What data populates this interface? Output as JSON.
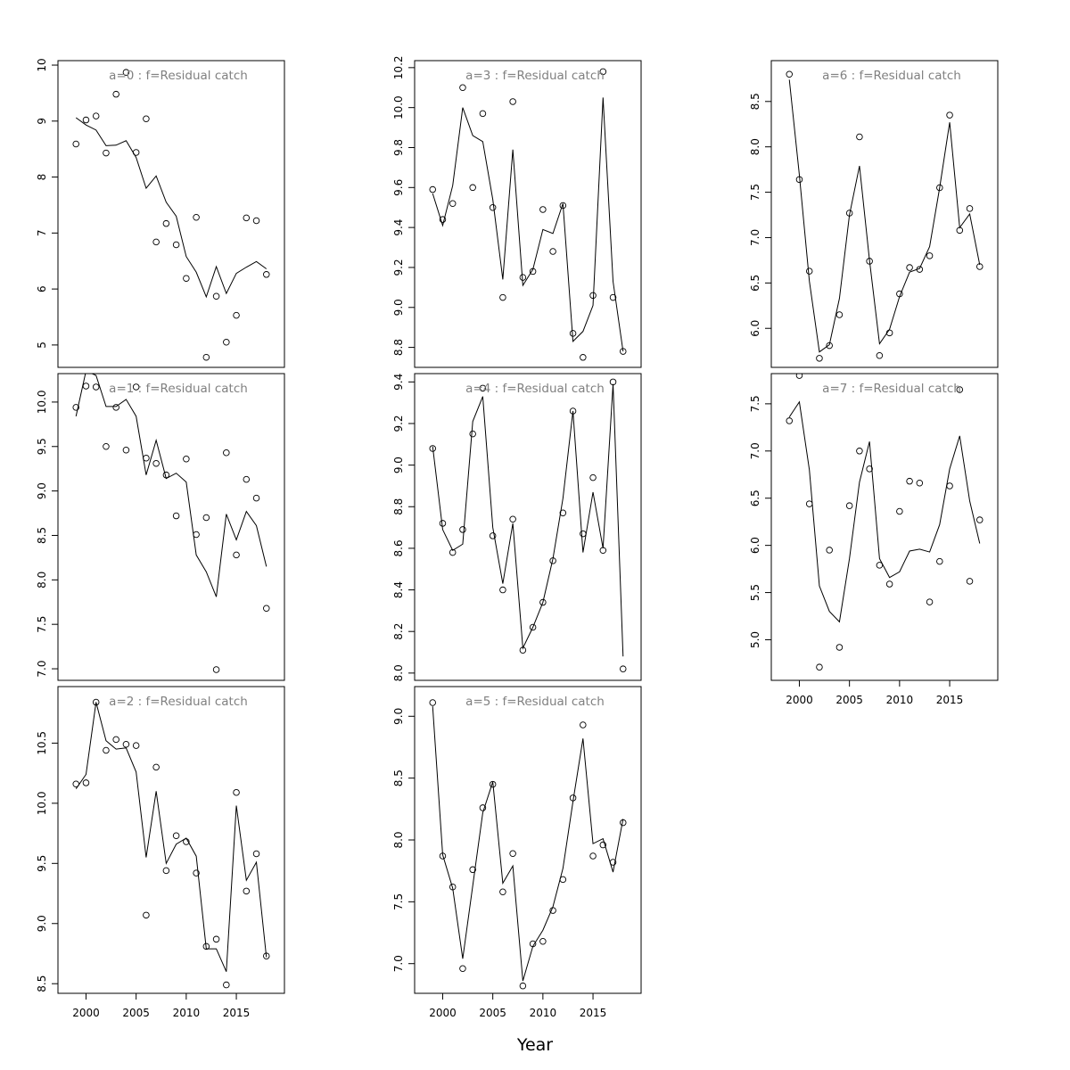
{
  "xlabel": "Year",
  "chart_data": [
    {
      "type": "scatter",
      "title": "a=0  :  f=Residual catch",
      "xlabel": "",
      "ylabel": "",
      "x": [
        1999,
        2000,
        2001,
        2002,
        2003,
        2004,
        2005,
        2006,
        2007,
        2008,
        2009,
        2010,
        2011,
        2012,
        2013,
        2014,
        2015,
        2016,
        2017,
        2018
      ],
      "xlim": [
        1997.2,
        2019.8
      ],
      "xticks": [
        2000,
        2005,
        2010,
        2015
      ],
      "ylim": [
        4.6,
        10.08
      ],
      "yticks": [
        5,
        6,
        7,
        8,
        9,
        10
      ],
      "series": [
        {
          "kind": "points",
          "values": [
            8.59,
            9.02,
            9.09,
            8.43,
            9.48,
            9.87,
            8.44,
            9.04,
            6.84,
            7.17,
            6.79,
            6.19,
            7.28,
            4.78,
            5.87,
            5.05,
            5.53,
            7.27,
            7.22,
            6.26
          ]
        },
        {
          "kind": "line",
          "values": [
            9.06,
            8.93,
            8.84,
            8.56,
            8.57,
            8.65,
            8.35,
            7.8,
            8.02,
            7.55,
            7.3,
            6.58,
            6.3,
            5.86,
            6.4,
            5.92,
            6.28,
            6.39,
            6.49,
            6.36
          ]
        }
      ]
    },
    {
      "type": "scatter",
      "title": "a=1  :  f=Residual catch",
      "xlabel": "",
      "ylabel": "",
      "x": [
        1999,
        2000,
        2001,
        2002,
        2003,
        2004,
        2005,
        2006,
        2007,
        2008,
        2009,
        2010,
        2011,
        2012,
        2013,
        2014,
        2015,
        2016,
        2017,
        2018
      ],
      "xlim": [
        1997.2,
        2019.8
      ],
      "xticks": [
        2000,
        2005,
        2010,
        2015
      ],
      "ylim": [
        6.87,
        10.32
      ],
      "yticks": [
        7.0,
        7.5,
        8.0,
        8.5,
        9.0,
        9.5,
        10.0
      ],
      "series": [
        {
          "kind": "points",
          "values": [
            9.94,
            10.18,
            10.17,
            9.5,
            9.94,
            9.46,
            10.17,
            9.37,
            9.31,
            9.18,
            8.72,
            9.36,
            8.51,
            8.7,
            6.99,
            9.43,
            8.28,
            9.13,
            8.92,
            7.68
          ]
        },
        {
          "kind": "line",
          "values": [
            9.84,
            10.35,
            10.3,
            9.95,
            9.95,
            10.03,
            9.84,
            9.18,
            9.57,
            9.14,
            9.2,
            9.1,
            8.28,
            8.09,
            7.81,
            8.74,
            8.45,
            8.77,
            8.61,
            8.15
          ]
        }
      ]
    },
    {
      "type": "scatter",
      "title": "a=2  :  f=Residual catch",
      "xlabel": "",
      "ylabel": "",
      "x": [
        1999,
        2000,
        2001,
        2002,
        2003,
        2004,
        2005,
        2006,
        2007,
        2008,
        2009,
        2010,
        2011,
        2012,
        2013,
        2014,
        2015,
        2016,
        2017,
        2018
      ],
      "xlim": [
        1997.2,
        2019.8
      ],
      "xticks": [
        2000,
        2005,
        2010,
        2015
      ],
      "ylim": [
        8.42,
        10.97
      ],
      "yticks": [
        8.5,
        9.0,
        9.5,
        10.0,
        10.5
      ],
      "series": [
        {
          "kind": "points",
          "values": [
            10.16,
            10.17,
            10.84,
            10.44,
            10.53,
            10.49,
            10.48,
            9.07,
            10.3,
            9.44,
            9.73,
            9.68,
            9.42,
            8.81,
            8.87,
            8.49,
            10.09,
            9.27,
            9.58,
            8.73
          ]
        },
        {
          "kind": "line",
          "values": [
            10.12,
            10.24,
            10.84,
            10.52,
            10.45,
            10.46,
            10.26,
            9.55,
            10.1,
            9.5,
            9.66,
            9.71,
            9.56,
            8.79,
            8.79,
            8.6,
            9.98,
            9.36,
            9.51,
            8.72
          ]
        }
      ]
    },
    {
      "type": "scatter",
      "title": "a=3  :  f=Residual catch",
      "xlabel": "",
      "ylabel": "",
      "x": [
        1999,
        2000,
        2001,
        2002,
        2003,
        2004,
        2005,
        2006,
        2007,
        2008,
        2009,
        2010,
        2011,
        2012,
        2013,
        2014,
        2015,
        2016,
        2017,
        2018
      ],
      "xlim": [
        1997.2,
        2019.8
      ],
      "xticks": [
        2000,
        2005,
        2010,
        2015
      ],
      "ylim": [
        8.7,
        10.235
      ],
      "yticks": [
        8.8,
        9.0,
        9.2,
        9.4,
        9.6,
        9.8,
        10.0,
        10.2
      ],
      "series": [
        {
          "kind": "points",
          "values": [
            9.59,
            9.44,
            9.52,
            10.1,
            9.6,
            9.97,
            9.5,
            9.05,
            10.03,
            9.15,
            9.18,
            9.49,
            9.28,
            9.51,
            8.87,
            8.75,
            9.06,
            10.18,
            9.05,
            8.78
          ]
        },
        {
          "kind": "line",
          "values": [
            9.57,
            9.41,
            9.61,
            10.0,
            9.86,
            9.83,
            9.54,
            9.14,
            9.79,
            9.11,
            9.19,
            9.39,
            9.37,
            9.52,
            8.83,
            8.88,
            9.01,
            10.05,
            9.13,
            8.78
          ]
        }
      ]
    },
    {
      "type": "scatter",
      "title": "a=4  :  f=Residual catch",
      "xlabel": "",
      "ylabel": "",
      "x": [
        1999,
        2000,
        2001,
        2002,
        2003,
        2004,
        2005,
        2006,
        2007,
        2008,
        2009,
        2010,
        2011,
        2012,
        2013,
        2014,
        2015,
        2016,
        2017,
        2018
      ],
      "xlim": [
        1997.2,
        2019.8
      ],
      "xticks": [
        2000,
        2005,
        2010,
        2015
      ],
      "ylim": [
        7.965,
        9.44
      ],
      "yticks": [
        8.0,
        8.2,
        8.4,
        8.6,
        8.8,
        9.0,
        9.2,
        9.4
      ],
      "series": [
        {
          "kind": "points",
          "values": [
            9.08,
            8.72,
            8.58,
            8.69,
            9.15,
            9.37,
            8.66,
            8.4,
            8.74,
            8.11,
            8.22,
            8.34,
            8.54,
            8.77,
            9.26,
            8.67,
            8.94,
            8.59,
            9.4,
            8.02
          ]
        },
        {
          "kind": "line",
          "values": [
            9.09,
            8.69,
            8.59,
            8.62,
            9.21,
            9.33,
            8.7,
            8.43,
            8.72,
            8.12,
            8.22,
            8.34,
            8.55,
            8.84,
            9.26,
            8.58,
            8.87,
            8.6,
            9.39,
            8.08
          ]
        }
      ]
    },
    {
      "type": "scatter",
      "title": "a=5  :  f=Residual catch",
      "xlabel": "",
      "ylabel": "",
      "x": [
        1999,
        2000,
        2001,
        2002,
        2003,
        2004,
        2005,
        2006,
        2007,
        2008,
        2009,
        2010,
        2011,
        2012,
        2013,
        2014,
        2015,
        2016,
        2017,
        2018
      ],
      "xlim": [
        1997.2,
        2019.8
      ],
      "xticks": [
        2000,
        2005,
        2010,
        2015
      ],
      "ylim": [
        6.76,
        9.24
      ],
      "yticks": [
        7.0,
        7.5,
        8.0,
        8.5,
        9.0
      ],
      "series": [
        {
          "kind": "points",
          "values": [
            9.11,
            7.87,
            7.62,
            6.96,
            7.76,
            8.26,
            8.45,
            7.58,
            7.89,
            6.82,
            7.16,
            7.18,
            7.43,
            7.68,
            8.34,
            8.93,
            7.87,
            7.96,
            7.82,
            8.14
          ]
        },
        {
          "kind": "line",
          "values": [
            9.08,
            7.88,
            7.61,
            7.04,
            7.63,
            8.22,
            8.47,
            7.65,
            7.79,
            6.86,
            7.14,
            7.27,
            7.46,
            7.77,
            8.31,
            8.82,
            7.97,
            8.01,
            7.74,
            8.17
          ]
        }
      ]
    },
    {
      "type": "scatter",
      "title": "a=6  :  f=Residual catch",
      "xlabel": "",
      "ylabel": "",
      "x": [
        1999,
        2000,
        2001,
        2002,
        2003,
        2004,
        2005,
        2006,
        2007,
        2008,
        2009,
        2010,
        2011,
        2012,
        2013,
        2014,
        2015,
        2016,
        2017,
        2018
      ],
      "xlim": [
        1997.2,
        2019.8
      ],
      "xticks": [
        2000,
        2005,
        2010,
        2015
      ],
      "ylim": [
        5.57,
        8.95
      ],
      "yticks": [
        6.0,
        6.5,
        7.0,
        7.5,
        8.0,
        8.5
      ],
      "series": [
        {
          "kind": "points",
          "values": [
            8.8,
            7.64,
            6.63,
            5.67,
            5.81,
            6.15,
            7.27,
            8.11,
            6.74,
            5.7,
            5.95,
            6.38,
            6.67,
            6.65,
            6.8,
            7.55,
            8.35,
            7.08,
            7.32,
            6.68
          ]
        },
        {
          "kind": "line",
          "values": [
            8.74,
            7.69,
            6.52,
            5.74,
            5.82,
            6.33,
            7.25,
            7.79,
            6.75,
            5.83,
            5.99,
            6.35,
            6.62,
            6.66,
            6.9,
            7.55,
            8.27,
            7.11,
            7.26,
            6.7
          ]
        }
      ]
    },
    {
      "type": "scatter",
      "title": "a=7  :  f=Residual catch",
      "xlabel": "",
      "ylabel": "",
      "x": [
        1999,
        2000,
        2001,
        2002,
        2003,
        2004,
        2005,
        2006,
        2007,
        2008,
        2009,
        2010,
        2011,
        2012,
        2013,
        2014,
        2015,
        2016,
        2017,
        2018
      ],
      "xlim": [
        1997.2,
        2019.8
      ],
      "xticks": [
        2000,
        2005,
        2010,
        2015
      ],
      "ylim": [
        4.57,
        7.82
      ],
      "yticks": [
        5.0,
        5.5,
        6.0,
        6.5,
        7.0,
        7.5
      ],
      "series": [
        {
          "kind": "points",
          "values": [
            7.32,
            7.8,
            6.44,
            4.71,
            5.95,
            4.92,
            6.42,
            7.0,
            6.81,
            5.79,
            5.59,
            6.36,
            6.68,
            6.66,
            5.4,
            5.83,
            6.63,
            7.65,
            5.62,
            6.27
          ]
        },
        {
          "kind": "line",
          "values": [
            7.36,
            7.52,
            6.8,
            5.57,
            5.3,
            5.19,
            5.86,
            6.67,
            7.1,
            5.86,
            5.66,
            5.72,
            5.94,
            5.96,
            5.93,
            6.22,
            6.81,
            7.16,
            6.47,
            6.02
          ]
        }
      ]
    }
  ]
}
